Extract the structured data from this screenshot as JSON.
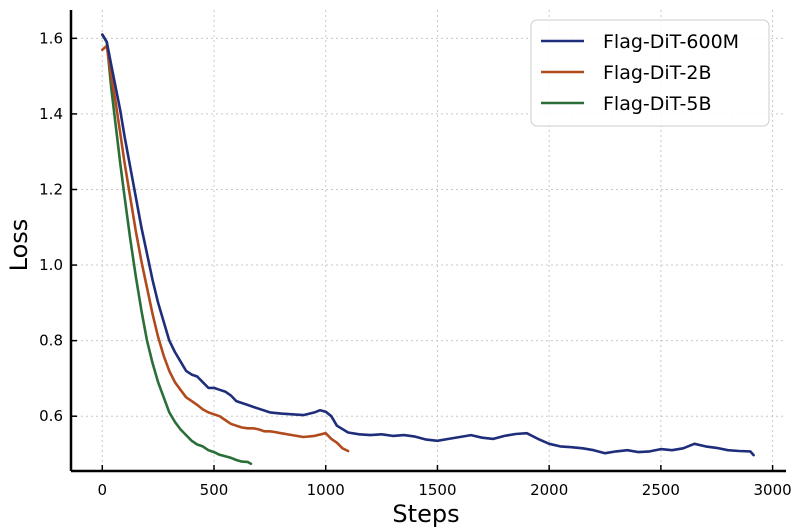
{
  "chart_data": {
    "type": "line",
    "title": "",
    "xlabel": "Steps",
    "ylabel": "Loss",
    "xlim": [
      -140,
      3060
    ],
    "ylim": [
      0.455,
      1.675
    ],
    "x_ticks": [
      0,
      500,
      1000,
      1500,
      2000,
      2500,
      3000
    ],
    "y_ticks": [
      0.6,
      0.8,
      1.0,
      1.2,
      1.4,
      1.6
    ],
    "x_tick_labels": [
      "0",
      "500",
      "1000",
      "1500",
      "2000",
      "2500",
      "3000"
    ],
    "y_tick_labels": [
      "0.6",
      "0.8",
      "1.0",
      "1.2",
      "1.4",
      "1.6"
    ],
    "grid": true,
    "legend_position": "top-right",
    "series": [
      {
        "name": "Flag-DiT-600M",
        "color": "#1f2e7a",
        "x": [
          0,
          20,
          40,
          60,
          80,
          100,
          125,
          150,
          175,
          200,
          225,
          250,
          275,
          300,
          325,
          350,
          375,
          400,
          425,
          450,
          475,
          500,
          525,
          550,
          575,
          600,
          650,
          700,
          750,
          800,
          850,
          900,
          950,
          975,
          1000,
          1025,
          1050,
          1100,
          1150,
          1200,
          1250,
          1300,
          1350,
          1400,
          1450,
          1500,
          1550,
          1600,
          1650,
          1700,
          1750,
          1800,
          1850,
          1900,
          1950,
          2000,
          2050,
          2100,
          2150,
          2200,
          2250,
          2300,
          2350,
          2400,
          2450,
          2500,
          2550,
          2600,
          2650,
          2700,
          2750,
          2800,
          2850,
          2900,
          2915
        ],
        "y": [
          1.61,
          1.59,
          1.53,
          1.47,
          1.41,
          1.34,
          1.26,
          1.18,
          1.1,
          1.03,
          0.96,
          0.9,
          0.85,
          0.8,
          0.77,
          0.745,
          0.72,
          0.71,
          0.705,
          0.69,
          0.675,
          0.675,
          0.67,
          0.665,
          0.655,
          0.64,
          0.63,
          0.62,
          0.61,
          0.607,
          0.605,
          0.603,
          0.61,
          0.616,
          0.612,
          0.6,
          0.575,
          0.557,
          0.552,
          0.55,
          0.552,
          0.548,
          0.55,
          0.546,
          0.538,
          0.535,
          0.54,
          0.545,
          0.55,
          0.543,
          0.54,
          0.548,
          0.553,
          0.555,
          0.54,
          0.527,
          0.52,
          0.518,
          0.515,
          0.51,
          0.502,
          0.507,
          0.51,
          0.505,
          0.507,
          0.513,
          0.51,
          0.515,
          0.527,
          0.52,
          0.516,
          0.51,
          0.508,
          0.507,
          0.497
        ]
      },
      {
        "name": "Flag-DiT-2B",
        "color": "#b14a1d",
        "x": [
          0,
          20,
          40,
          60,
          80,
          100,
          125,
          150,
          175,
          200,
          225,
          250,
          275,
          300,
          325,
          350,
          375,
          400,
          425,
          450,
          475,
          500,
          525,
          550,
          575,
          600,
          625,
          650,
          675,
          700,
          725,
          750,
          775,
          800,
          850,
          900,
          950,
          1000,
          1025,
          1050,
          1075,
          1100
        ],
        "y": [
          1.57,
          1.58,
          1.5,
          1.43,
          1.35,
          1.27,
          1.18,
          1.09,
          1.01,
          0.94,
          0.87,
          0.81,
          0.76,
          0.72,
          0.69,
          0.67,
          0.65,
          0.64,
          0.63,
          0.618,
          0.61,
          0.605,
          0.6,
          0.59,
          0.58,
          0.575,
          0.57,
          0.568,
          0.568,
          0.565,
          0.56,
          0.56,
          0.558,
          0.555,
          0.55,
          0.545,
          0.548,
          0.555,
          0.54,
          0.53,
          0.515,
          0.508
        ]
      },
      {
        "name": "Flag-DiT-5B",
        "color": "#2a6e38",
        "x": [
          0,
          20,
          40,
          60,
          80,
          100,
          125,
          150,
          175,
          200,
          225,
          250,
          275,
          300,
          325,
          350,
          375,
          400,
          425,
          450,
          475,
          500,
          525,
          550,
          575,
          600,
          625,
          650,
          665
        ],
        "y": [
          1.61,
          1.59,
          1.47,
          1.37,
          1.27,
          1.18,
          1.07,
          0.97,
          0.88,
          0.8,
          0.74,
          0.69,
          0.65,
          0.61,
          0.585,
          0.565,
          0.55,
          0.535,
          0.525,
          0.52,
          0.51,
          0.505,
          0.498,
          0.494,
          0.49,
          0.484,
          0.48,
          0.479,
          0.474
        ]
      }
    ]
  }
}
